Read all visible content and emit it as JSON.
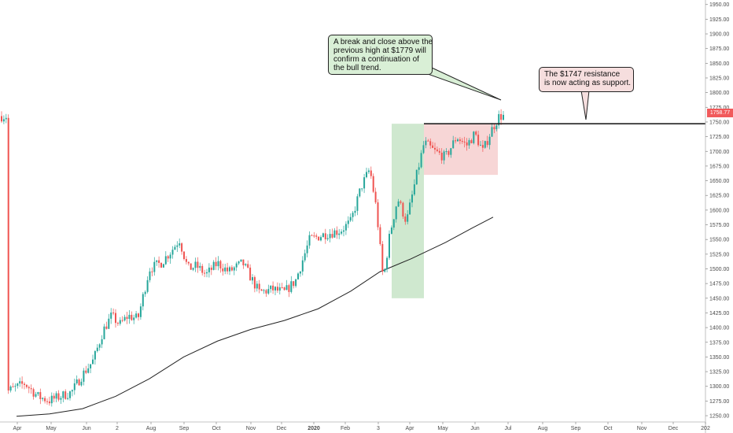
{
  "chart_data": {
    "type": "candlestick",
    "instrument_price_label": "1758.77",
    "x_tick_labels": [
      "Apr",
      "May",
      "Jun",
      "2",
      "Aug",
      "Sep",
      "Oct",
      "Nov",
      "Dec",
      "2020",
      "Feb",
      "3",
      "Apr",
      "May",
      "Jun",
      "Jul",
      "Aug",
      "Sep",
      "Oct",
      "Nov",
      "Dec",
      "202"
    ],
    "y_tick_labels": [
      "1950.00",
      "1925.00",
      "1900.00",
      "1875.00",
      "1850.00",
      "1825.00",
      "1800.00",
      "1775.00",
      "1750.00",
      "1725.00",
      "1700.00",
      "1675.00",
      "1650.00",
      "1625.00",
      "1600.00",
      "1575.00",
      "1550.00",
      "1525.00",
      "1500.00",
      "1475.00",
      "1450.00",
      "1425.00",
      "1400.00",
      "1375.00",
      "1350.00",
      "1325.00",
      "1300.00",
      "1275.00",
      "1250.00"
    ],
    "y_range": [
      1242,
      1955
    ],
    "price_path": [
      {
        "x": "Apr 2019",
        "y": 1292
      },
      {
        "x": "Apr 2019",
        "y": 1305
      },
      {
        "x": "May 2019",
        "y": 1282
      },
      {
        "x": "May 2019",
        "y": 1276
      },
      {
        "x": "May 2019",
        "y": 1283
      },
      {
        "x": "Jun 2019",
        "y": 1290
      },
      {
        "x": "Jun 2019",
        "y": 1320
      },
      {
        "x": "Jun 2019",
        "y": 1345
      },
      {
        "x": "Jul 2019",
        "y": 1395
      },
      {
        "x": "Jul 2019",
        "y": 1420
      },
      {
        "x": "Jul 2019",
        "y": 1405
      },
      {
        "x": "Jul 2019",
        "y": 1420
      },
      {
        "x": "Aug 2019",
        "y": 1415
      },
      {
        "x": "Aug 2019",
        "y": 1500
      },
      {
        "x": "Aug 2019",
        "y": 1510
      },
      {
        "x": "Sep 2019",
        "y": 1530
      },
      {
        "x": "Sep 2019",
        "y": 1550
      },
      {
        "x": "Sep 2019",
        "y": 1500
      },
      {
        "x": "Sep 2019",
        "y": 1505
      },
      {
        "x": "Oct 2019",
        "y": 1490
      },
      {
        "x": "Oct 2019",
        "y": 1510
      },
      {
        "x": "Oct 2019",
        "y": 1495
      },
      {
        "x": "Nov 2019",
        "y": 1510
      },
      {
        "x": "Nov 2019",
        "y": 1460
      },
      {
        "x": "Dec 2019",
        "y": 1465
      },
      {
        "x": "Dec 2019",
        "y": 1460
      },
      {
        "x": "Dec 2019",
        "y": 1480
      },
      {
        "x": "Jan 2020",
        "y": 1550
      },
      {
        "x": "Jan 2020",
        "y": 1560
      },
      {
        "x": "Feb 2020",
        "y": 1565
      },
      {
        "x": "Feb 2020",
        "y": 1580
      },
      {
        "x": "Feb 2020",
        "y": 1640
      },
      {
        "x": "Mar 2020",
        "y": 1670
      },
      {
        "x": "Mar 2020",
        "y": 1600
      },
      {
        "x": "Mar 2020",
        "y": 1480
      },
      {
        "x": "Mar 2020",
        "y": 1560
      },
      {
        "x": "Apr 2020",
        "y": 1620
      },
      {
        "x": "Apr 2020",
        "y": 1580
      },
      {
        "x": "Apr 2020",
        "y": 1650
      },
      {
        "x": "Apr 2020",
        "y": 1715
      },
      {
        "x": "May 2020",
        "y": 1700
      },
      {
        "x": "May 2020",
        "y": 1690
      },
      {
        "x": "May 2020",
        "y": 1725
      },
      {
        "x": "Jun 2020",
        "y": 1710
      },
      {
        "x": "Jun 2020",
        "y": 1730
      },
      {
        "x": "Jun 2020",
        "y": 1700
      },
      {
        "x": "Jun 2020",
        "y": 1735
      },
      {
        "x": "Jun 2020",
        "y": 1760
      }
    ],
    "moving_average": [
      {
        "x": "Apr 2019",
        "y": 1249
      },
      {
        "x": "May 2019",
        "y": 1253
      },
      {
        "x": "Jun 2019",
        "y": 1262
      },
      {
        "x": "Jul 2019",
        "y": 1283
      },
      {
        "x": "Aug 2019",
        "y": 1313
      },
      {
        "x": "Sep 2019",
        "y": 1350
      },
      {
        "x": "Oct 2019",
        "y": 1377
      },
      {
        "x": "Nov 2019",
        "y": 1397
      },
      {
        "x": "Dec 2019",
        "y": 1412
      },
      {
        "x": "Jan 2020",
        "y": 1432
      },
      {
        "x": "Feb 2020",
        "y": 1462
      },
      {
        "x": "Mar 2020",
        "y": 1495
      },
      {
        "x": "Apr 2020",
        "y": 1517
      },
      {
        "x": "May 2020",
        "y": 1545
      },
      {
        "x": "Jun 2020",
        "y": 1570
      },
      {
        "x": "Jun 2020",
        "y": 1588
      }
    ],
    "resistance_level": 1747,
    "annotations": {
      "break_callout": [
        "A break and close above the",
        "previous high at $1779 will",
        "confirm a continuation of",
        "the bull trend."
      ],
      "support_callout": [
        "The $1747 resistance",
        "is now acting as support."
      ]
    },
    "colors": {
      "up": "#26a69a",
      "down": "#ef5350",
      "green_zone": "#cfe8cf",
      "red_zone": "#f7d6d6",
      "ma_line": "#222222",
      "support_line": "#222222"
    }
  }
}
